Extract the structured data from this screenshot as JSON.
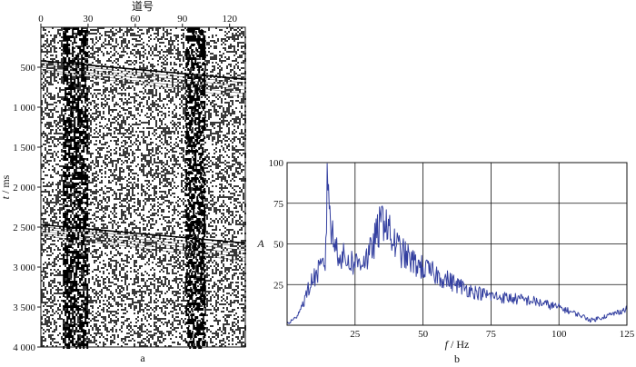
{
  "chart_data": [
    {
      "panel": "a",
      "type": "heatmap",
      "caption": "a",
      "xlabel": "道号",
      "ylabel_symbol": "t",
      "ylabel_unit": "/ ms",
      "xlim": [
        0,
        130
      ],
      "ylim": [
        0,
        4000
      ],
      "x_ticks": [
        0,
        30,
        60,
        90,
        120
      ],
      "y_ticks": [
        500,
        1000,
        1500,
        2000,
        2500,
        3000,
        3500,
        4000
      ],
      "y_tick_labels": [
        "500",
        "1 000",
        "1 500",
        "2 000",
        "2 500",
        "3 000",
        "3 500",
        "4 000"
      ],
      "strong_noise_traces": [
        [
          14,
          30
        ],
        [
          92,
          104
        ]
      ],
      "events": [
        {
          "start": [
            0,
            420
          ],
          "end": [
            130,
            650
          ]
        },
        {
          "start": [
            0,
            2470
          ],
          "end": [
            130,
            2700
          ]
        }
      ]
    },
    {
      "panel": "b",
      "type": "line",
      "caption": "b",
      "xlabel_symbol": "f",
      "xlabel_unit": "/ Hz",
      "ylabel": "A",
      "xlim": [
        0,
        125
      ],
      "ylim": [
        0,
        100
      ],
      "grid": true,
      "x_ticks": [
        25,
        50,
        75,
        100,
        125
      ],
      "y_ticks": [
        25,
        50,
        75,
        100
      ],
      "series": [
        {
          "color": "#3440a0",
          "x": [
            0,
            3,
            6,
            9,
            12,
            14,
            15,
            16,
            17,
            20,
            25,
            30,
            34,
            36,
            38,
            42,
            46,
            50,
            55,
            60,
            65,
            70,
            75,
            80,
            90,
            100,
            108,
            112,
            116,
            120,
            125
          ],
          "y": [
            1,
            4,
            14,
            27,
            34,
            38,
            97,
            62,
            52,
            42,
            38,
            42,
            60,
            68,
            54,
            45,
            39,
            35,
            31,
            27,
            23,
            20,
            18,
            17,
            15,
            11,
            6,
            3,
            5,
            7,
            10
          ]
        }
      ]
    }
  ]
}
